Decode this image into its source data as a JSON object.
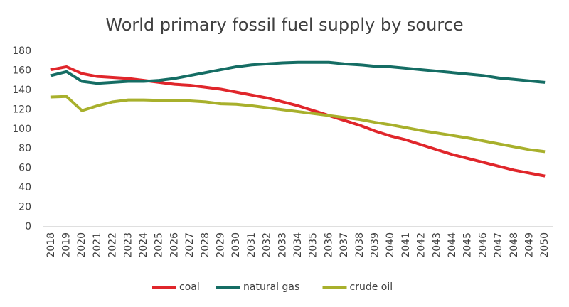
{
  "chart_data": {
    "type": "line",
    "title": "World primary fossil fuel supply by source",
    "categories": [
      "2018",
      "2019",
      "2020",
      "2021",
      "2022",
      "2023",
      "2024",
      "2025",
      "2026",
      "2027",
      "2028",
      "2029",
      "2030",
      "2031",
      "2032",
      "2033",
      "2034",
      "2035",
      "2036",
      "2037",
      "2038",
      "2039",
      "2040",
      "2041",
      "2042",
      "2043",
      "2044",
      "2045",
      "2046",
      "2047",
      "2048",
      "2049",
      "2050"
    ],
    "series": [
      {
        "name": "coal",
        "color": "#e0262b",
        "values": [
          161,
          164,
          157,
          154,
          153,
          152,
          150,
          148,
          146,
          145,
          143,
          141,
          138,
          135,
          132,
          128,
          124,
          119,
          114,
          109,
          104,
          98,
          93,
          89,
          84,
          79,
          74,
          70,
          66,
          62,
          58,
          55,
          52
        ]
      },
      {
        "name": "natural gas",
        "color": "#156d64",
        "values": [
          155,
          159,
          149,
          147,
          148,
          149,
          149,
          150,
          152,
          155,
          158,
          161,
          164,
          166,
          167,
          168,
          168.5,
          168.5,
          168.5,
          167,
          166,
          164.5,
          164,
          162.5,
          161,
          159.5,
          158,
          156.5,
          155,
          152.5,
          151,
          149.5,
          148
        ]
      },
      {
        "name": "crude oil",
        "color": "#a8b02c",
        "values": [
          133,
          133.5,
          119,
          124,
          128,
          130,
          130,
          129.5,
          129,
          129,
          128,
          126,
          125.5,
          124,
          122,
          120,
          118,
          116,
          114,
          112,
          110,
          107,
          104.5,
          101.5,
          98.5,
          96,
          93.5,
          91,
          88,
          85,
          82,
          79,
          77
        ]
      }
    ],
    "ylim": [
      0,
      180
    ],
    "yticks": [
      0,
      20,
      40,
      60,
      80,
      100,
      120,
      140,
      160,
      180
    ],
    "grid": false,
    "legend": "bottom"
  }
}
